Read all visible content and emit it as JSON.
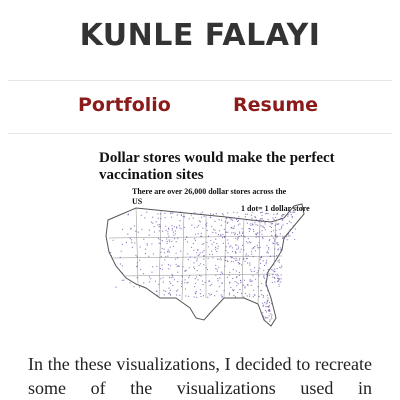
{
  "header": {
    "site_title": "KUNLE FALAYI"
  },
  "nav": {
    "items": [
      {
        "label": "Portfolio"
      },
      {
        "label": "Resume"
      }
    ]
  },
  "figure": {
    "title": "Dollar stores would make the perfect vaccination sites",
    "subtitle": "There are over 26,000 dollar stores across the US",
    "legend": "1 dot= 1 dollar store",
    "dot_color": "#6a4aa5"
  },
  "content": {
    "paragraph": "In the these visualizations, I decided to recreate some of the visualizations used in"
  }
}
